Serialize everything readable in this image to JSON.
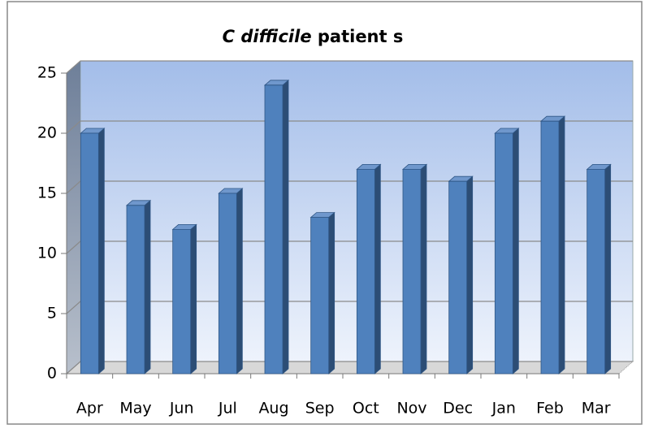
{
  "chart_data": {
    "type": "bar",
    "title": [
      "C difficile",
      "patient s"
    ],
    "categories": [
      "Apr",
      "May",
      "Jun",
      "Jul",
      "Aug",
      "Sep",
      "Oct",
      "Nov",
      "Dec",
      "Jan",
      "Feb",
      "Mar"
    ],
    "values": [
      20,
      14,
      12,
      15,
      24,
      13,
      17,
      17,
      16,
      20,
      21,
      17
    ],
    "color": "#4f81bd",
    "ylim": [
      0,
      25
    ],
    "yticks": [
      0,
      5,
      10,
      15,
      20,
      25
    ],
    "grid": true
  }
}
